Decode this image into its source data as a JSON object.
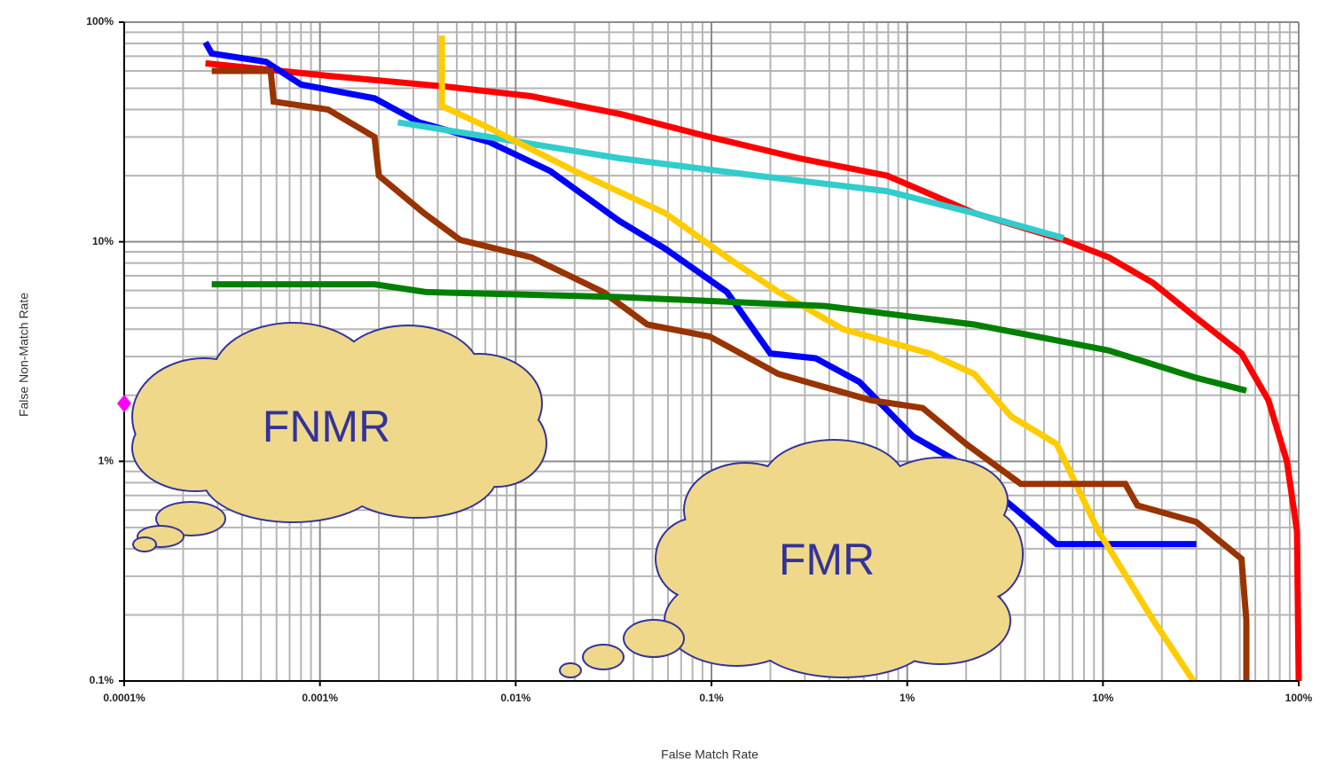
{
  "chart_data": {
    "type": "line",
    "x_label": "False Match Rate",
    "y_label": "False Non-Match Rate",
    "x_log": true,
    "y_log": true,
    "grid": true,
    "minor_grid": true,
    "xlim": [
      0.0001,
      100
    ],
    "ylim": [
      0.1,
      100
    ],
    "xticks": [
      {
        "value": 0.0001,
        "label": "0.0001%"
      },
      {
        "value": 0.001,
        "label": "0.001%"
      },
      {
        "value": 0.01,
        "label": "0.01%"
      },
      {
        "value": 0.1,
        "label": "0.1%"
      },
      {
        "value": 1,
        "label": "1%"
      },
      {
        "value": 10,
        "label": "10%"
      },
      {
        "value": 100,
        "label": "100%"
      }
    ],
    "yticks": [
      {
        "value": 0.1,
        "label": "0.1%"
      },
      {
        "value": 1,
        "label": "1%"
      },
      {
        "value": 10,
        "label": "10%"
      },
      {
        "value": 100,
        "label": "100%"
      }
    ],
    "annotations": [
      "FNMR",
      "FMR"
    ],
    "series": [
      {
        "color": "#ff0000",
        "x": [
          0.00026,
          0.0011,
          0.0043,
          0.012,
          0.035,
          0.098,
          0.28,
          0.79,
          2.2,
          6.3,
          10.7,
          18,
          30,
          51,
          70,
          87,
          98,
          100
        ],
        "values": [
          65,
          57,
          51,
          46,
          38,
          30,
          24,
          20,
          13.5,
          10.2,
          8.5,
          6.5,
          4.5,
          3.1,
          1.9,
          1,
          0.48,
          0.1
        ]
      },
      {
        "color": "#0000ff",
        "x": [
          0.00026,
          0.00028,
          0.00053,
          0.0008,
          0.0019,
          0.0032,
          0.0073,
          0.015,
          0.034,
          0.058,
          0.12,
          0.2,
          0.34,
          0.57,
          1.07,
          1.8,
          3.4,
          5.8,
          30
        ],
        "values": [
          81,
          72,
          66,
          52,
          45,
          35,
          28.5,
          21,
          12.4,
          9.3,
          5.9,
          3.1,
          2.95,
          2.3,
          1.3,
          1.0,
          0.63,
          0.42,
          0.42
        ]
      },
      {
        "color": "#33cccc",
        "x": [
          0.0025,
          0.0073,
          0.034,
          0.17,
          0.79,
          2.2,
          6.3
        ],
        "values": [
          35,
          30,
          24,
          20,
          17,
          13.5,
          10.4
        ]
      },
      {
        "color": "#ffcc00",
        "x": [
          0.0042,
          0.0042,
          0.0073,
          0.02,
          0.058,
          0.12,
          0.22,
          0.47,
          1.3,
          2.2,
          3.4,
          5.8,
          9.5,
          18,
          29
        ],
        "values": [
          87,
          41.5,
          33,
          21,
          13.5,
          8.5,
          5.9,
          4.0,
          3.1,
          2.5,
          1.6,
          1.2,
          0.48,
          0.19,
          0.1
        ]
      },
      {
        "color": "#993300",
        "x": [
          0.00028,
          0.00056,
          0.00058,
          0.0011,
          0.0019,
          0.002,
          0.0034,
          0.0052,
          0.012,
          0.028,
          0.047,
          0.098,
          0.22,
          0.65,
          1.2,
          2.0,
          3.8,
          13,
          15,
          30,
          51,
          54,
          54
        ],
        "values": [
          60,
          60,
          43.5,
          40,
          30,
          20,
          13.5,
          10.2,
          8.5,
          5.9,
          4.2,
          3.7,
          2.5,
          1.9,
          1.75,
          1.2,
          0.79,
          0.79,
          0.63,
          0.53,
          0.36,
          0.19,
          0.1
        ]
      },
      {
        "color": "#008000",
        "x": [
          0.00028,
          0.0019,
          0.0035,
          0.034,
          0.38,
          2.2,
          10.7,
          30,
          54
        ],
        "values": [
          6.4,
          6.4,
          5.9,
          5.6,
          5.1,
          4.2,
          3.2,
          2.4,
          2.1
        ]
      }
    ]
  }
}
